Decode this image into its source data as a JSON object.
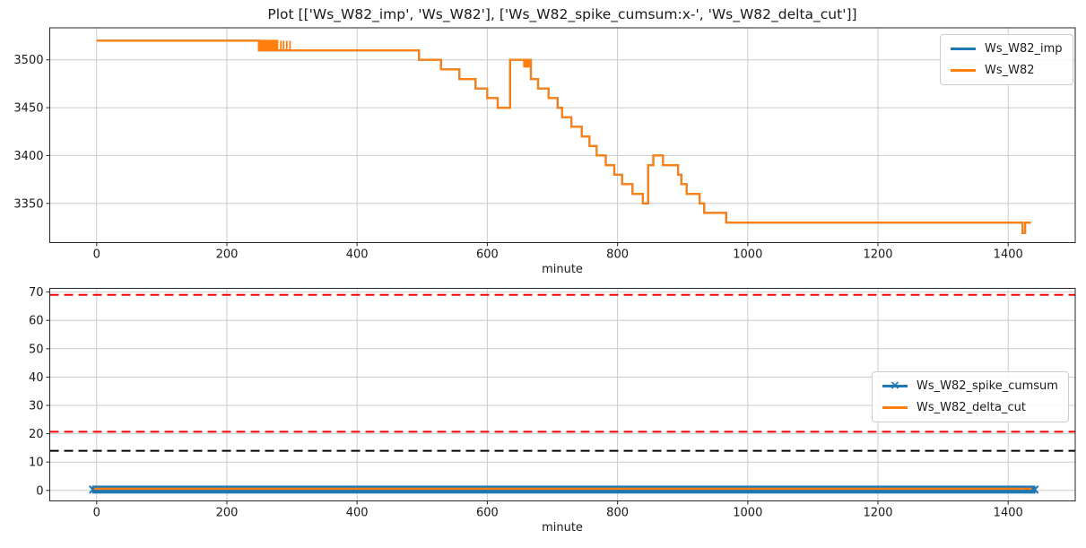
{
  "title": "Plot [['Ws_W82_imp', 'Ws_W82'], ['Ws_W82_spike_cumsum:x-', 'Ws_W82_delta_cut']]",
  "colors": {
    "blue": "#1f77b4",
    "orange": "#ff7f0e",
    "red": "#ff0000",
    "black": "#000000",
    "grid": "#cccccc",
    "axis": "#262626",
    "text": "#262626"
  },
  "chart_data": [
    {
      "id": "top",
      "type": "line",
      "style_note": "step plot, grid on",
      "xlabel": "minute",
      "xlim": [
        -72,
        1503
      ],
      "ylim": [
        3309,
        3533.5
      ],
      "xticks": [
        0,
        200,
        400,
        600,
        800,
        1000,
        1200,
        1400
      ],
      "yticks": [
        3350,
        3400,
        3450,
        3500
      ],
      "grid": true,
      "legend": {
        "position": "upper right",
        "entries": [
          {
            "label": "Ws_W82_imp",
            "color": "#1f77b4",
            "marker": "none"
          },
          {
            "label": "Ws_W82",
            "color": "#ff7f0e",
            "marker": "none"
          }
        ]
      },
      "series": [
        {
          "name": "Ws_W82_imp",
          "color": "#1f77b4",
          "style": "step-after",
          "points": [
            [
              0,
              3520
            ],
            [
              249,
              3510
            ],
            [
              495,
              3500
            ],
            [
              529,
              3490
            ],
            [
              557,
              3480
            ],
            [
              582,
              3470
            ],
            [
              600,
              3460
            ],
            [
              616,
              3450
            ],
            [
              635,
              3500
            ],
            [
              667,
              3480
            ],
            [
              678,
              3470
            ],
            [
              694,
              3460
            ],
            [
              708,
              3450
            ],
            [
              715,
              3440
            ],
            [
              729,
              3430
            ],
            [
              745,
              3420
            ],
            [
              757,
              3410
            ],
            [
              768,
              3400
            ],
            [
              782,
              3390
            ],
            [
              795,
              3380
            ],
            [
              807,
              3370
            ],
            [
              823,
              3360
            ],
            [
              839,
              3350
            ],
            [
              847,
              3390
            ],
            [
              855,
              3400
            ],
            [
              870,
              3390
            ],
            [
              893,
              3380
            ],
            [
              898,
              3370
            ],
            [
              906,
              3360
            ],
            [
              926,
              3350
            ],
            [
              933,
              3340
            ],
            [
              967,
              3330
            ],
            [
              1422,
              3319
            ],
            [
              1426,
              3330
            ],
            [
              1435,
              3330
            ]
          ]
        },
        {
          "name": "Ws_W82",
          "color": "#ff7f0e",
          "style": "step-after",
          "points": [
            [
              0,
              3520
            ],
            [
              249,
              3510
            ],
            [
              495,
              3500
            ],
            [
              529,
              3490
            ],
            [
              557,
              3480
            ],
            [
              582,
              3470
            ],
            [
              600,
              3460
            ],
            [
              616,
              3450
            ],
            [
              635,
              3500
            ],
            [
              667,
              3480
            ],
            [
              678,
              3470
            ],
            [
              694,
              3460
            ],
            [
              708,
              3450
            ],
            [
              715,
              3440
            ],
            [
              729,
              3430
            ],
            [
              745,
              3420
            ],
            [
              757,
              3410
            ],
            [
              768,
              3400
            ],
            [
              782,
              3390
            ],
            [
              795,
              3380
            ],
            [
              807,
              3370
            ],
            [
              823,
              3360
            ],
            [
              839,
              3350
            ],
            [
              847,
              3390
            ],
            [
              855,
              3400
            ],
            [
              870,
              3390
            ],
            [
              893,
              3380
            ],
            [
              898,
              3370
            ],
            [
              906,
              3360
            ],
            [
              926,
              3350
            ],
            [
              933,
              3340
            ],
            [
              967,
              3330
            ],
            [
              1422,
              3319
            ],
            [
              1426,
              3330
            ],
            [
              1435,
              3330
            ]
          ]
        }
      ],
      "noise_blocks": [
        {
          "x0": 249,
          "x1": 279,
          "y0": 3510,
          "y1": 3521,
          "color": "#ff7f0e"
        },
        {
          "x0": 655,
          "x1": 666,
          "y0": 3492,
          "y1": 3501,
          "color": "#ff7f0e"
        }
      ],
      "noise_ticks": [
        {
          "x": 283,
          "y0": 3510,
          "y1": 3520,
          "color": "#ff7f0e"
        },
        {
          "x": 287,
          "y0": 3510,
          "y1": 3520,
          "color": "#ff7f0e"
        },
        {
          "x": 292,
          "y0": 3510,
          "y1": 3520,
          "color": "#ff7f0e"
        },
        {
          "x": 297,
          "y0": 3510,
          "y1": 3520,
          "color": "#ff7f0e"
        }
      ]
    },
    {
      "id": "bottom",
      "type": "line",
      "style_note": "grid on, dashed threshold lines",
      "xlabel": "minute",
      "xlim": [
        -72,
        1503
      ],
      "ylim": [
        -3.7,
        71.3
      ],
      "xticks": [
        0,
        200,
        400,
        600,
        800,
        1000,
        1200,
        1400
      ],
      "yticks": [
        0,
        10,
        20,
        30,
        40,
        50,
        60,
        70
      ],
      "grid": true,
      "hlines": [
        {
          "y": 69,
          "color": "#ff0000",
          "style": "dashed"
        },
        {
          "y": 20.7,
          "color": "#ff0000",
          "style": "dashed"
        },
        {
          "y": 14,
          "color": "#000000",
          "style": "dashed"
        }
      ],
      "legend": {
        "position": "center right",
        "entries": [
          {
            "label": "Ws_W82_spike_cumsum",
            "color": "#1f77b4",
            "marker": "x"
          },
          {
            "label": "Ws_W82_delta_cut",
            "color": "#ff7f0e",
            "marker": "none"
          }
        ]
      },
      "series": [
        {
          "name": "Ws_W82_spike_cumsum",
          "color": "#1f77b4",
          "style": "band",
          "x0": -7,
          "x1": 1442,
          "y_top": 1.7,
          "y_bottom": -1.1,
          "marker": "x",
          "value_note": "dense x-markers around 0"
        },
        {
          "name": "Ws_W82_delta_cut",
          "color": "#ff7f0e",
          "style": "line",
          "points": [
            [
              -4,
              0.6
            ],
            [
              1436,
              0.6
            ]
          ]
        }
      ]
    }
  ]
}
